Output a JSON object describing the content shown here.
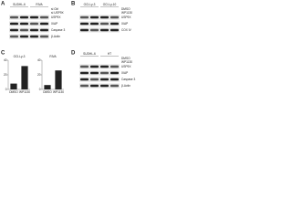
{
  "panels": [
    {
      "label": "A",
      "columns": [
        "SUDHL-6",
        "RIVA"
      ],
      "rows": [
        "si Ctrl",
        "si USP9X"
      ],
      "bands": [
        "USP9X",
        "XIAP",
        "Caspase 3",
        "β-Actin"
      ]
    },
    {
      "label": "B",
      "columns": [
        "OCI-Ly-3",
        "OCI-Ly-10"
      ],
      "rows": [
        "DMSO",
        "WP1130"
      ],
      "bands": [
        "USP9X",
        "XIAP",
        "COX IV"
      ]
    },
    {
      "label": "C"
    },
    {
      "label": "D",
      "columns": [
        "SUDHL-6",
        "HT"
      ],
      "rows": [
        "DMSO",
        "WP1130"
      ],
      "bands": [
        "USP9X",
        "XIAP",
        "Caspase 3",
        "β-Actin"
      ]
    }
  ],
  "chart_data": [
    {
      "type": "bar",
      "title": "OCI-Ly-3",
      "categories": [
        "DMSO",
        "WP1130"
      ],
      "values": [
        8,
        32
      ],
      "color": "#222222",
      "ylim": [
        0,
        40
      ],
      "yticks": [
        0,
        20,
        40
      ]
    },
    {
      "type": "bar",
      "title": "RIVA",
      "categories": [
        "DMSO",
        "WP1130"
      ],
      "values": [
        6,
        26
      ],
      "color": "#222222",
      "ylim": [
        0,
        40
      ],
      "yticks": [
        0,
        20,
        40
      ]
    }
  ]
}
